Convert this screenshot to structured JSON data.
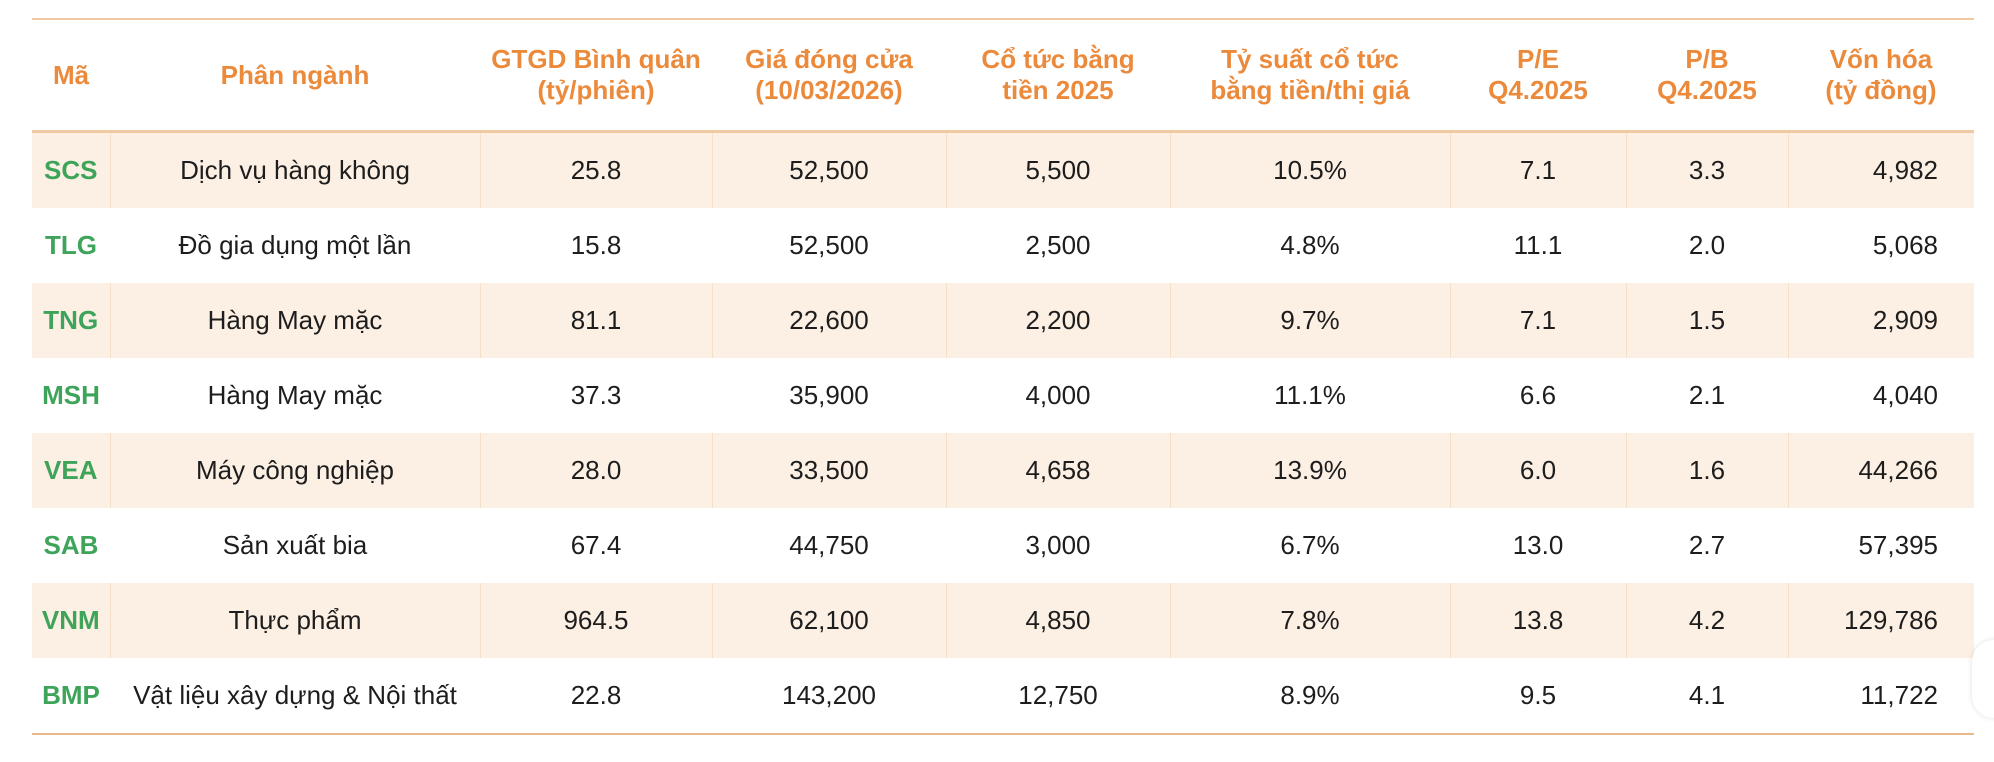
{
  "table": {
    "headers": [
      "Mã",
      "Phân ngành",
      "GTGD Bình quân\n(tỷ/phiên)",
      "Giá đóng cửa\n(10/03/2026)",
      "Cổ tức bằng\ntiền 2025",
      "Tỷ suất cổ tức\nbằng tiền/thị giá",
      "P/E\nQ4.2025",
      "P/B\nQ4.2025",
      "Vốn hóa\n(tỷ đồng)"
    ],
    "rows": [
      [
        "SCS",
        "Dịch vụ hàng không",
        "25.8",
        "52,500",
        "5,500",
        "10.5%",
        "7.1",
        "3.3",
        "4,982"
      ],
      [
        "TLG",
        "Đồ gia dụng một lần",
        "15.8",
        "52,500",
        "2,500",
        "4.8%",
        "11.1",
        "2.0",
        "5,068"
      ],
      [
        "TNG",
        "Hàng May mặc",
        "81.1",
        "22,600",
        "2,200",
        "9.7%",
        "7.1",
        "1.5",
        "2,909"
      ],
      [
        "MSH",
        "Hàng May mặc",
        "37.3",
        "35,900",
        "4,000",
        "11.1%",
        "6.6",
        "2.1",
        "4,040"
      ],
      [
        "VEA",
        "Máy công nghiệp",
        "28.0",
        "33,500",
        "4,658",
        "13.9%",
        "6.0",
        "1.6",
        "44,266"
      ],
      [
        "SAB",
        "Sản xuất bia",
        "67.4",
        "44,750",
        "3,000",
        "6.7%",
        "13.0",
        "2.7",
        "57,395"
      ],
      [
        "VNM",
        "Thực phẩm",
        "964.5",
        "62,100",
        "4,850",
        "7.8%",
        "13.8",
        "4.2",
        "129,786"
      ],
      [
        "BMP",
        "Vật liệu xây dựng & Nội thất",
        "22.8",
        "143,200",
        "12,750",
        "8.9%",
        "9.5",
        "4.1",
        "11,722"
      ]
    ]
  },
  "colors": {
    "header_text": "#ec8a3c",
    "code_text": "#3ea45a",
    "band_fill": "#fcefe3",
    "rule": "#efc9a1"
  },
  "chart_data": {
    "type": "table",
    "columns": [
      "Mã",
      "Phân ngành",
      "GTGD Bình quân (tỷ/phiên)",
      "Giá đóng cửa (10/03/2026)",
      "Cổ tức bằng tiền 2025",
      "Tỷ suất cổ tức bằng tiền/thị giá",
      "P/E Q4.2025",
      "P/B Q4.2025",
      "Vốn hóa (tỷ đồng)"
    ],
    "rows": [
      [
        "SCS",
        "Dịch vụ hàng không",
        25.8,
        52500,
        5500,
        10.5,
        7.1,
        3.3,
        4982
      ],
      [
        "TLG",
        "Đồ gia dụng một lần",
        15.8,
        52500,
        2500,
        4.8,
        11.1,
        2.0,
        5068
      ],
      [
        "TNG",
        "Hàng May mặc",
        81.1,
        22600,
        2200,
        9.7,
        7.1,
        1.5,
        2909
      ],
      [
        "MSH",
        "Hàng May mặc",
        37.3,
        35900,
        4000,
        11.1,
        6.6,
        2.1,
        4040
      ],
      [
        "VEA",
        "Máy công nghiệp",
        28.0,
        33500,
        4658,
        13.9,
        6.0,
        1.6,
        44266
      ],
      [
        "SAB",
        "Sản xuất bia",
        67.4,
        44750,
        3000,
        6.7,
        13.0,
        2.7,
        57395
      ],
      [
        "VNM",
        "Thực phẩm",
        964.5,
        62100,
        4850,
        7.8,
        13.8,
        4.2,
        129786
      ],
      [
        "BMP",
        "Vật liệu xây dựng & Nội thất",
        22.8,
        143200,
        12750,
        8.9,
        9.5,
        4.1,
        11722
      ]
    ]
  }
}
